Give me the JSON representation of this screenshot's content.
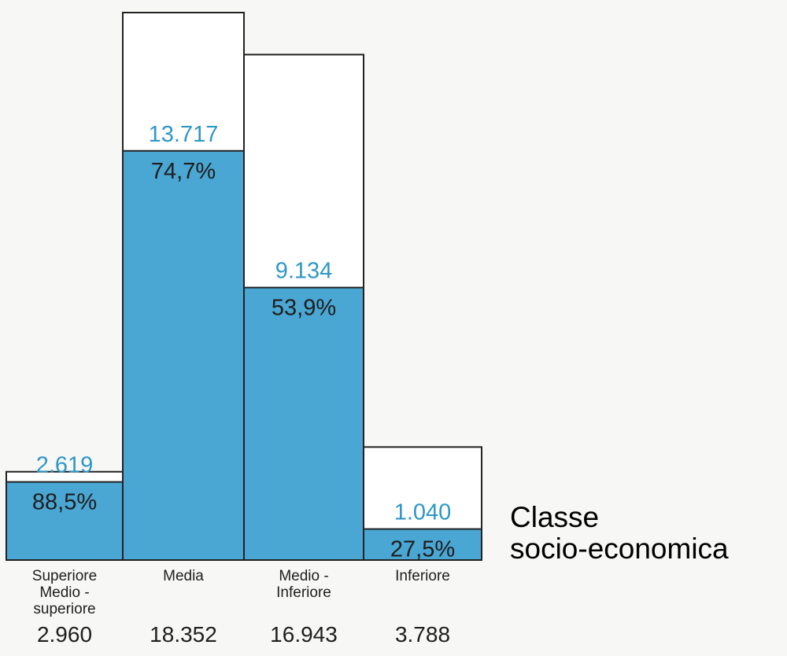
{
  "colors": {
    "fill": "#4aa6d2",
    "accent_text": "#2e97c6",
    "ink": "#1e1e1e",
    "outline": "#222222"
  },
  "legend_title": [
    "Classe",
    "socio-economica"
  ],
  "chart_data": {
    "type": "bar",
    "categories": [
      [
        "Superiore",
        "Medio -",
        "superiore"
      ],
      [
        "Media"
      ],
      [
        "Medio -",
        "Inferiore"
      ],
      [
        "Inferiore"
      ]
    ],
    "totals": [
      2960,
      18352,
      16943,
      3788
    ],
    "totals_labels": [
      "2.960",
      "18.352",
      "16.943",
      "3.788"
    ],
    "filled_values": [
      2619,
      13717,
      9134,
      1040
    ],
    "filled_labels": [
      "2.619",
      "13.717",
      "9.134",
      "1.040"
    ],
    "percent_labels": [
      "88,5%",
      "74,7%",
      "53,9%",
      "27,5%"
    ],
    "ylim": [
      0,
      18352
    ],
    "grid": false
  }
}
